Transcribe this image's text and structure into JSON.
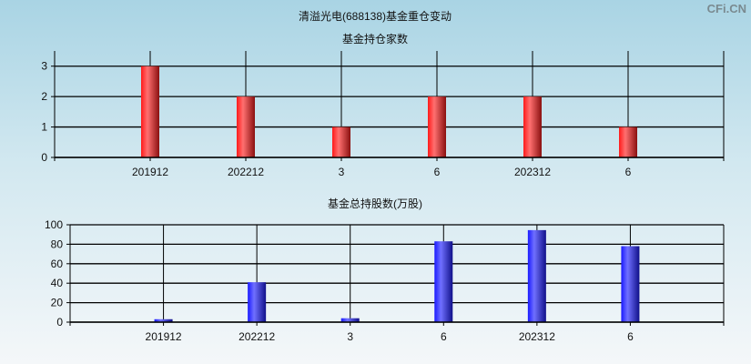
{
  "title": "清溢光电(688138)基金重仓变动",
  "watermark": "CFi.CN",
  "chart_data": [
    {
      "type": "bar",
      "title": "基金持仓家数",
      "categories": [
        "201912",
        "202212",
        "3",
        "6",
        "202312",
        "6"
      ],
      "values": [
        3,
        2,
        1,
        2,
        2,
        1
      ],
      "ylim": [
        0,
        3.5
      ],
      "yticks": [
        0,
        1,
        2,
        3
      ],
      "grid": true,
      "color": "#e02020"
    },
    {
      "type": "bar",
      "title": "基金总持股数(万股)",
      "categories": [
        "201912",
        "202212",
        "3",
        "6",
        "202312",
        "6"
      ],
      "values": [
        3,
        41,
        4,
        83,
        94.5,
        78
      ],
      "ylim": [
        0,
        100
      ],
      "yticks": [
        0,
        20,
        40,
        60,
        80,
        100
      ],
      "grid": true,
      "color": "#2828e0"
    }
  ]
}
